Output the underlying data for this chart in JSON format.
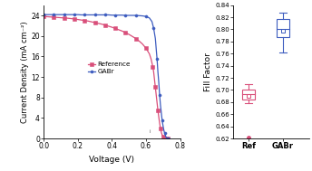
{
  "jv_ref_x": [
    0.0,
    0.02,
    0.04,
    0.06,
    0.08,
    0.1,
    0.12,
    0.14,
    0.16,
    0.18,
    0.2,
    0.22,
    0.24,
    0.26,
    0.28,
    0.3,
    0.32,
    0.34,
    0.36,
    0.38,
    0.4,
    0.42,
    0.44,
    0.46,
    0.48,
    0.5,
    0.52,
    0.54,
    0.56,
    0.58,
    0.6,
    0.62,
    0.63,
    0.64,
    0.645,
    0.65,
    0.655,
    0.66,
    0.665,
    0.67,
    0.675,
    0.68,
    0.685,
    0.69,
    0.695,
    0.7,
    0.705,
    0.71,
    0.715,
    0.72,
    0.725,
    0.73
  ],
  "jv_ref_y": [
    23.8,
    23.75,
    23.7,
    23.65,
    23.6,
    23.55,
    23.5,
    23.45,
    23.38,
    23.3,
    23.2,
    23.1,
    23.0,
    22.9,
    22.75,
    22.6,
    22.45,
    22.3,
    22.1,
    21.9,
    21.7,
    21.45,
    21.2,
    20.95,
    20.65,
    20.3,
    19.9,
    19.5,
    19.0,
    18.4,
    17.6,
    16.5,
    15.5,
    14.0,
    13.0,
    11.5,
    10.0,
    8.5,
    7.0,
    5.5,
    4.2,
    3.0,
    2.0,
    1.2,
    0.7,
    0.3,
    0.1,
    0.03,
    0.01,
    0.0,
    0.0,
    0.0
  ],
  "jv_gabr_x": [
    0.0,
    0.02,
    0.04,
    0.06,
    0.08,
    0.1,
    0.12,
    0.14,
    0.16,
    0.18,
    0.2,
    0.22,
    0.24,
    0.26,
    0.28,
    0.3,
    0.32,
    0.34,
    0.36,
    0.38,
    0.4,
    0.42,
    0.44,
    0.46,
    0.48,
    0.5,
    0.52,
    0.54,
    0.56,
    0.58,
    0.6,
    0.62,
    0.635,
    0.645,
    0.655,
    0.66,
    0.665,
    0.67,
    0.675,
    0.68,
    0.685,
    0.69,
    0.695,
    0.7,
    0.705,
    0.71,
    0.715,
    0.72,
    0.73,
    0.74
  ],
  "jv_gabr_y": [
    24.15,
    24.15,
    24.15,
    24.15,
    24.15,
    24.15,
    24.15,
    24.15,
    24.15,
    24.15,
    24.15,
    24.1,
    24.1,
    24.1,
    24.1,
    24.1,
    24.1,
    24.1,
    24.1,
    24.1,
    24.05,
    24.05,
    24.05,
    24.05,
    24.0,
    24.0,
    24.0,
    24.0,
    23.95,
    23.9,
    23.8,
    23.5,
    22.8,
    21.5,
    19.5,
    17.5,
    15.5,
    13.0,
    11.0,
    8.5,
    6.5,
    5.0,
    3.5,
    2.5,
    1.6,
    1.0,
    0.5,
    0.15,
    0.0,
    0.0
  ],
  "ref_color": "#d94f7a",
  "gabr_color": "#3d5cbf",
  "ref_box": {
    "q1": 0.684,
    "q3": 0.7,
    "median": 0.693,
    "mean": 0.691,
    "whisker_low": 0.678,
    "whisker_high": 0.71,
    "outliers": [
      0.622
    ]
  },
  "gabr_box": {
    "q1": 0.787,
    "q3": 0.817,
    "median": 0.8,
    "mean": 0.798,
    "whisker_low": 0.762,
    "whisker_high": 0.828,
    "outliers": []
  },
  "ylim_jv": [
    0,
    26
  ],
  "xlim_jv": [
    0.0,
    0.8
  ],
  "ylim_ff": [
    0.62,
    0.84
  ],
  "jv_yticks": [
    0,
    4,
    8,
    12,
    16,
    20,
    24
  ],
  "jv_ytick_labels": [
    "0",
    "4",
    "8",
    "12",
    "16",
    "20",
    "24"
  ],
  "jv_xticks": [
    0.0,
    0.2,
    0.4,
    0.6,
    0.8
  ],
  "ff_yticks": [
    0.62,
    0.64,
    0.66,
    0.68,
    0.7,
    0.72,
    0.74,
    0.76,
    0.78,
    0.8,
    0.82,
    0.84
  ],
  "xlabel_jv": "Voltage (V)",
  "ylabel_jv": "Current Density (mA cm⁻²)",
  "ylabel_ff": "Fill Factor",
  "xtick_ff": [
    "Ref",
    "GABr"
  ],
  "legend_ref": "Reference",
  "legend_gabr": "GABr",
  "marker_every_ref": 3,
  "marker_every_gabr": 3,
  "box_width": 0.38
}
